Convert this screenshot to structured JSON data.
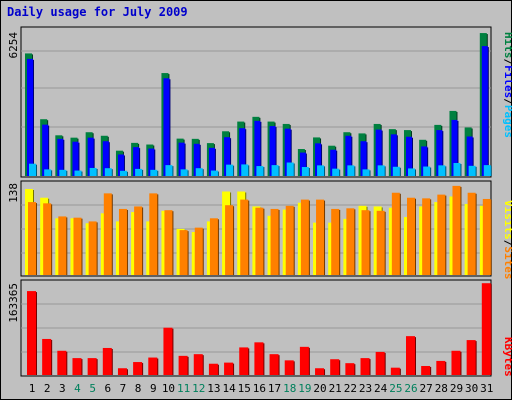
{
  "title": "Daily usage for July 2009",
  "colors": {
    "pages": "#00c0ff",
    "files": "#0000ff",
    "hits": "#008040",
    "visits": "#ffff00",
    "sites": "#ff8000",
    "kbytes": "#ff0000",
    "weekend_label": "#00805c",
    "weekday_label": "#000000",
    "plot_bg": "#c0c0c0"
  },
  "chart_data": [
    {
      "type": "bar",
      "panel": "hits-files-pages",
      "ytick_label": "6254",
      "ylim": [
        0,
        6254
      ],
      "legend": [
        "Pages",
        "Files",
        "Hits"
      ],
      "categories": [
        "1",
        "2",
        "3",
        "4",
        "5",
        "6",
        "7",
        "8",
        "9",
        "10",
        "11",
        "12",
        "13",
        "14",
        "15",
        "16",
        "17",
        "18",
        "19",
        "20",
        "21",
        "22",
        "23",
        "24",
        "25",
        "26",
        "27",
        "28",
        "29",
        "30",
        "31"
      ],
      "series": [
        {
          "name": "Hits",
          "values": [
            5180,
            2400,
            1720,
            1620,
            1850,
            1700,
            1070,
            1400,
            1330,
            4350,
            1580,
            1570,
            1390,
            1890,
            2300,
            2500,
            2300,
            2200,
            1140,
            1630,
            1280,
            1850,
            1800,
            2200,
            1980,
            1940,
            1530,
            2160,
            2750,
            2050,
            6040
          ]
        },
        {
          "name": "Files",
          "values": [
            4950,
            2170,
            1570,
            1450,
            1620,
            1470,
            910,
            1220,
            1160,
            4130,
            1410,
            1360,
            1190,
            1640,
            2020,
            2330,
            2110,
            2000,
            990,
            1380,
            1110,
            1700,
            1470,
            1960,
            1760,
            1660,
            1250,
            1940,
            2370,
            1670,
            5490
          ]
        },
        {
          "name": "Pages",
          "values": [
            520,
            280,
            260,
            230,
            340,
            330,
            220,
            300,
            260,
            460,
            280,
            330,
            230,
            480,
            490,
            420,
            460,
            570,
            380,
            450,
            310,
            450,
            280,
            450,
            390,
            320,
            400,
            450,
            550,
            430,
            460
          ]
        }
      ]
    },
    {
      "type": "bar",
      "panel": "visits-sites",
      "ytick_label": "138",
      "ylim": [
        0,
        138
      ],
      "legend": [
        "Sites",
        "Visits"
      ],
      "categories": [
        "1",
        "2",
        "3",
        "4",
        "5",
        "6",
        "7",
        "8",
        "9",
        "10",
        "11",
        "12",
        "13",
        "14",
        "15",
        "16",
        "17",
        "18",
        "19",
        "20",
        "21",
        "22",
        "23",
        "24",
        "25",
        "26",
        "27",
        "28",
        "29",
        "30",
        "31"
      ],
      "series": [
        {
          "name": "Visits",
          "values": [
            138,
            124,
            91,
            91,
            83,
            99,
            86,
            101,
            86,
            103,
            74,
            69,
            86,
            134,
            134,
            110,
            95,
            105,
            116,
            84,
            84,
            90,
            111,
            110,
            108,
            93,
            110,
            117,
            126,
            114,
            111
          ]
        },
        {
          "name": "Sites",
          "values": [
            117,
            115,
            94,
            92,
            86,
            131,
            106,
            110,
            131,
            104,
            72,
            76,
            91,
            112,
            121,
            108,
            106,
            111,
            121,
            121,
            106,
            107,
            104,
            103,
            132,
            124,
            123,
            129,
            143,
            132,
            122
          ]
        }
      ]
    },
    {
      "type": "bar",
      "panel": "kbytes",
      "ytick_label": "163365",
      "ylim": [
        0,
        163365
      ],
      "legend": [
        "KBytes"
      ],
      "categories": [
        "1",
        "2",
        "3",
        "4",
        "5",
        "6",
        "7",
        "8",
        "9",
        "10",
        "11",
        "12",
        "13",
        "14",
        "15",
        "16",
        "17",
        "18",
        "19",
        "20",
        "21",
        "22",
        "23",
        "24",
        "25",
        "26",
        "27",
        "28",
        "29",
        "30",
        "31"
      ],
      "series": [
        {
          "name": "KBytes",
          "values": [
            149000,
            64000,
            43000,
            30000,
            30000,
            48000,
            12000,
            23000,
            31000,
            84000,
            34000,
            37000,
            20000,
            22000,
            49000,
            58000,
            37000,
            26000,
            50000,
            12000,
            28000,
            21000,
            30000,
            41000,
            13000,
            69000,
            16000,
            25000,
            43000,
            62000,
            163000
          ]
        }
      ]
    }
  ]
}
